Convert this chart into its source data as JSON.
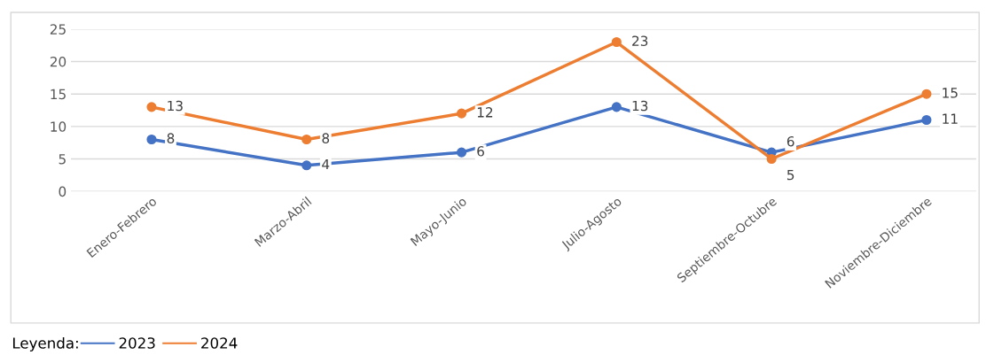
{
  "chart_data": {
    "type": "line",
    "categories": [
      "Enero-Febrero",
      "Marzo-Abril",
      "Mayo-Junio",
      "Julio-Agosto",
      "Septiembre-Octubre",
      "Noviembre-Diciembre"
    ],
    "series": [
      {
        "name": "2023",
        "color": "#4472c4",
        "values": [
          8,
          4,
          6,
          13,
          6,
          11
        ]
      },
      {
        "name": "2024",
        "color": "#ed7d31",
        "values": [
          13,
          8,
          12,
          23,
          5,
          15
        ]
      }
    ],
    "ylim": [
      0,
      25
    ],
    "yticks": [
      0,
      5,
      10,
      15,
      20,
      25
    ],
    "grid": "y",
    "legend": "bottom left",
    "legend_title": "Leyenda:",
    "marker": "circle",
    "line_style": "solid",
    "data_labels": true
  }
}
